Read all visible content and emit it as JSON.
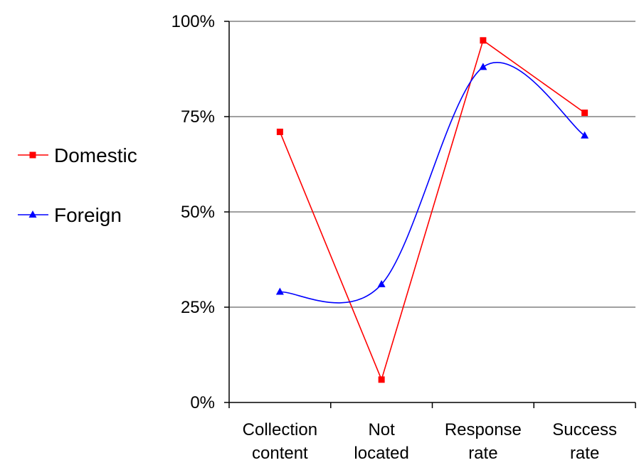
{
  "chart_data": {
    "type": "line",
    "categories": [
      [
        "Collection",
        "content"
      ],
      [
        "Not",
        "located"
      ],
      [
        "Response",
        "rate"
      ],
      [
        "Success",
        "rate"
      ]
    ],
    "ylim": [
      0,
      100
    ],
    "y_ticks": [
      0,
      25,
      50,
      75,
      100
    ],
    "y_tick_labels": [
      "0%",
      "25%",
      "50%",
      "75%",
      "100%"
    ],
    "grid": true,
    "legend_position": "left",
    "series": [
      {
        "name": "Domestic",
        "values": [
          71,
          6,
          95,
          76
        ],
        "color": "#ff0000",
        "marker": "square",
        "smooth": false
      },
      {
        "name": "Foreign",
        "values": [
          29,
          31,
          88,
          70
        ],
        "color": "#0000ff",
        "marker": "triangle",
        "smooth": true
      }
    ]
  }
}
